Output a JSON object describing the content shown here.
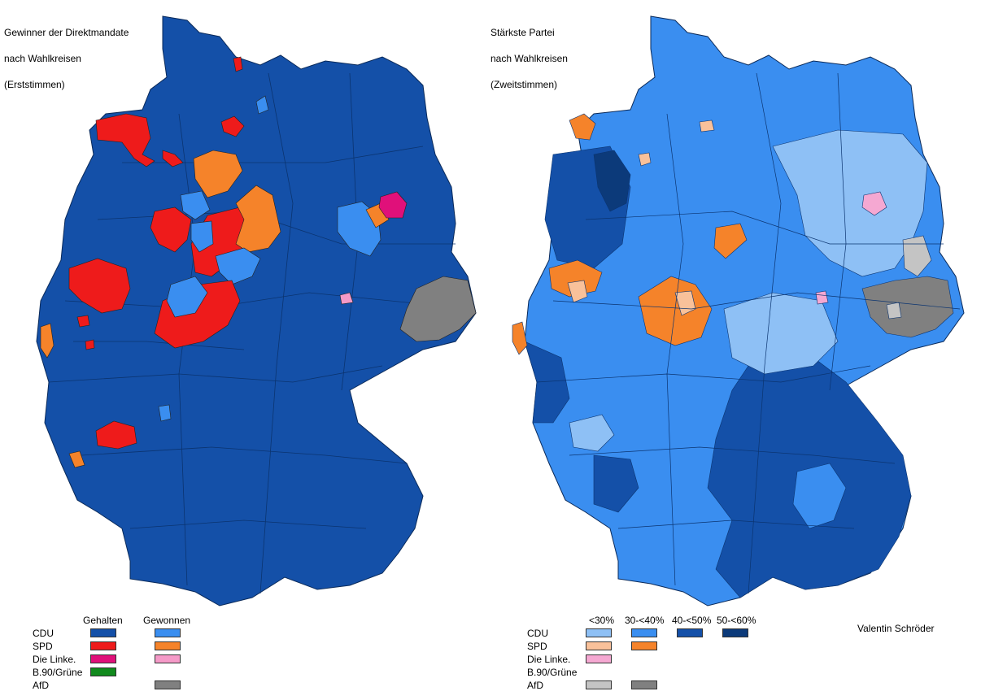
{
  "left_map": {
    "title_lines": [
      "Gewinner der Direktmandate",
      "nach Wahlkreisen",
      "(Erststimmen)"
    ],
    "legend": {
      "col_headers": [
        "Gehalten",
        "Gewonnen"
      ],
      "rows": [
        {
          "party": "CDU",
          "held": "#1450a8",
          "won": "#3a8ef0"
        },
        {
          "party": "SPD",
          "held": "#ee1b1b",
          "won": "#f5832a"
        },
        {
          "party": "Die Linke.",
          "held": "#e0107a",
          "won": "#f59ac8"
        },
        {
          "party": "B.90/Grüne",
          "held": "#118a1d",
          "won": null
        },
        {
          "party": "AfD",
          "held": null,
          "won": "#808080"
        }
      ]
    }
  },
  "right_map": {
    "title_lines": [
      "Stärkste Partei",
      "nach Wahlkreisen",
      "(Zweitstimmen)"
    ],
    "legend": {
      "col_headers": [
        "<30%",
        "30-<40%",
        "40-<50%",
        "50-<60%"
      ],
      "rows": [
        {
          "party": "CDU",
          "colors": [
            "#8ec0f5",
            "#3a8ef0",
            "#1450a8",
            "#0c3a7a"
          ]
        },
        {
          "party": "SPD",
          "colors": [
            "#f9c19a",
            "#f5832a",
            null,
            null
          ]
        },
        {
          "party": "Die Linke.",
          "colors": [
            "#f5a8d2",
            null,
            null,
            null
          ]
        },
        {
          "party": "B.90/Grüne",
          "colors": [
            null,
            null,
            null,
            null
          ]
        },
        {
          "party": "AfD",
          "colors": [
            "#c4c4c4",
            "#808080",
            null,
            null
          ]
        }
      ]
    }
  },
  "credit": "Valentin Schröder"
}
